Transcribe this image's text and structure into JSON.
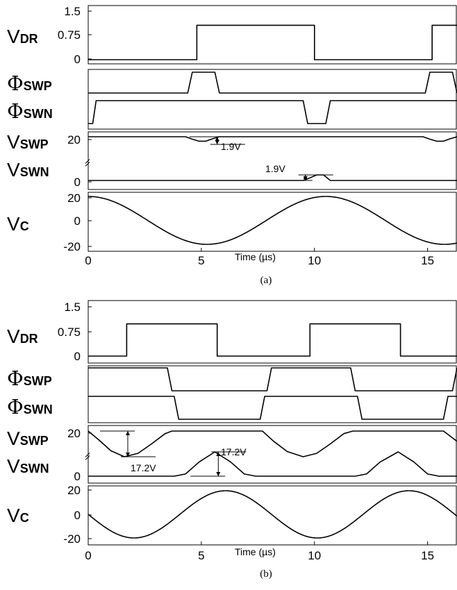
{
  "chart_data": [
    {
      "type": "line",
      "caption": "(a)",
      "x_axis": {
        "title": "Time (µs)",
        "range": [
          0,
          16.3
        ],
        "ticks": [
          "0",
          "5",
          "10",
          "15"
        ]
      },
      "panels": [
        {
          "label_main": "V",
          "label_sub": "DR",
          "yticks": [
            "1.5",
            "0.75",
            "0"
          ],
          "ylim": [
            0,
            1.5
          ],
          "series": [
            {
              "x": [
                0,
                4.8,
                4.8,
                10.0,
                10.0,
                15.2,
                15.2,
                16.3
              ],
              "y": [
                0,
                0,
                1.2,
                1.2,
                0,
                0,
                1.2,
                1.2
              ]
            }
          ]
        },
        {
          "label_main": "Φ",
          "label_sub": "SWP",
          "yticks": [],
          "series": [
            {
              "x": [
                0,
                4.4,
                4.6,
                5.6,
                5.8,
                14.9,
                15.1,
                16.1,
                16.3
              ],
              "y": [
                0,
                0,
                1,
                1,
                0,
                0,
                1,
                1,
                0
              ]
            }
          ]
        },
        {
          "label_main": "Φ",
          "label_sub": "SWN",
          "yticks": [],
          "series": [
            {
              "x": [
                0,
                0.2,
                0.35,
                9.5,
                9.7,
                10.5,
                10.7,
                16.3
              ],
              "y": [
                0,
                0,
                1,
                1,
                0,
                0,
                1,
                1
              ]
            }
          ]
        },
        {
          "label_main": "V",
          "label_sub": "SWP",
          "yticks": [
            "20"
          ],
          "ylim": [
            15,
            21
          ],
          "series": [
            {
              "x": [
                0,
                4.3,
                4.6,
                4.9,
                5.2,
                5.5,
                5.8,
                14.8,
                15.1,
                15.4,
                15.7,
                16.0,
                16.3
              ],
              "y": [
                20,
                20,
                19.4,
                18.9,
                18.9,
                19.5,
                20,
                20,
                19.4,
                18.9,
                18.9,
                19.5,
                20
              ]
            }
          ],
          "annotation": "1.9V"
        },
        {
          "label_main": "V",
          "label_sub": "SWN",
          "yticks": [
            "0"
          ],
          "ylim": [
            -1,
            5
          ],
          "series": [
            {
              "x": [
                0,
                9.5,
                9.8,
                10.1,
                10.4,
                10.7,
                16.3
              ],
              "y": [
                0,
                0,
                0.9,
                1.9,
                1.9,
                0,
                0
              ]
            }
          ],
          "annotation": "1.9V"
        },
        {
          "label_main": "V",
          "label_sub": "C",
          "yticks": [
            "20",
            "0",
            "-20"
          ],
          "ylim": [
            -20,
            20
          ],
          "waveform": {
            "shape": "cosine",
            "amplitude": 20,
            "period_us": 10.5
          }
        }
      ]
    },
    {
      "type": "line",
      "caption": "(b)",
      "x_axis": {
        "title": "Time (µs)",
        "range": [
          0,
          16.3
        ],
        "ticks": [
          "0",
          "5",
          "10",
          "15"
        ]
      },
      "panels": [
        {
          "label_main": "V",
          "label_sub": "DR",
          "yticks": [
            "1.5",
            "0.75",
            "0"
          ],
          "ylim": [
            0,
            1.5
          ],
          "series": [
            {
              "x": [
                0,
                1.7,
                1.7,
                5.7,
                5.7,
                9.8,
                9.8,
                13.8,
                13.8,
                16.3
              ],
              "y": [
                0,
                0,
                1.2,
                1.2,
                0,
                0,
                1.2,
                1.2,
                0,
                0
              ]
            }
          ]
        },
        {
          "label_main": "Φ",
          "label_sub": "SWP",
          "yticks": [],
          "series": [
            {
              "x": [
                0,
                3.5,
                3.7,
                7.9,
                8.1,
                11.6,
                11.8,
                16.1,
                16.3
              ],
              "y": [
                1,
                1,
                0,
                0,
                1,
                1,
                0,
                0,
                1
              ]
            }
          ]
        },
        {
          "label_main": "Φ",
          "label_sub": "SWN",
          "yticks": [],
          "series": [
            {
              "x": [
                0,
                3.8,
                4.0,
                7.6,
                7.8,
                11.9,
                12.1,
                15.7,
                15.9,
                16.3
              ],
              "y": [
                1,
                1,
                0,
                0,
                1,
                1,
                0,
                0,
                1,
                1
              ]
            }
          ]
        },
        {
          "label_main": "V",
          "label_sub": "SWP",
          "yticks": [
            "20"
          ],
          "ylim": [
            0,
            21
          ],
          "series": [
            {
              "x": [
                0,
                0.5,
                1,
                1.6,
                2.2,
                2.8,
                3.4,
                3.7,
                7.7,
                8.2,
                8.8,
                9.5,
                10.1,
                10.7,
                11.3,
                11.7,
                15.7,
                16.3
              ],
              "y": [
                20,
                18.9,
                17.7,
                17.0,
                17.4,
                18.5,
                19.7,
                20,
                20,
                18.8,
                17.6,
                17.0,
                17.4,
                18.5,
                19.7,
                20,
                20,
                18.8
              ]
            }
          ],
          "annotation": "17.2V"
        },
        {
          "label_main": "V",
          "label_sub": "SWN",
          "yticks": [
            "0"
          ],
          "ylim": [
            -1,
            20
          ],
          "series": [
            {
              "x": [
                0,
                3.8,
                4.3,
                4.9,
                5.6,
                6.3,
                6.9,
                7.4,
                7.7,
                11.8,
                12.3,
                12.9,
                13.7,
                14.4,
                15.0,
                15.5,
                15.8,
                16.3
              ],
              "y": [
                0,
                0,
                1.5,
                10.0,
                17.2,
                10.0,
                1.5,
                0,
                0,
                0,
                1.5,
                10.0,
                17.2,
                10.0,
                1.5,
                0,
                0,
                0
              ]
            }
          ],
          "annotation": "17.2V"
        },
        {
          "label_main": "V",
          "label_sub": "C",
          "yticks": [
            "20",
            "0",
            "-20"
          ],
          "ylim": [
            -20,
            20
          ],
          "waveform": {
            "shape": "neg-sine",
            "amplitude": 20,
            "period_us": 8.1
          }
        }
      ]
    }
  ]
}
